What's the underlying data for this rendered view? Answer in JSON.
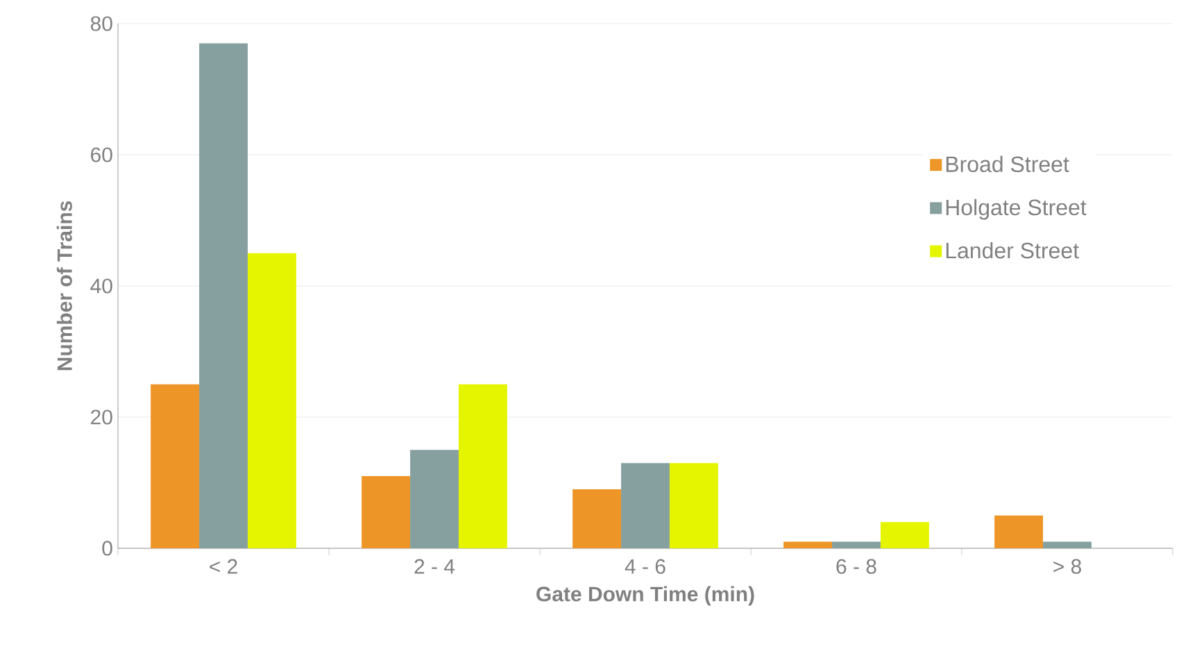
{
  "chart_data": {
    "type": "bar",
    "xlabel": "Gate Down Time (min)",
    "ylabel": "Number of Trains",
    "categories": [
      "< 2",
      "2 - 4",
      "4 - 6",
      "6 - 8",
      "> 8"
    ],
    "series": [
      {
        "name": "Broad Street",
        "color": "#ee9527",
        "values": [
          25,
          11,
          9,
          1,
          5
        ]
      },
      {
        "name": "Holgate Street",
        "color": "#86a0a0",
        "values": [
          77,
          15,
          13,
          1,
          1
        ]
      },
      {
        "name": "Lander Street",
        "color": "#e5f500",
        "values": [
          45,
          25,
          13,
          4,
          0
        ]
      }
    ],
    "ylim": [
      0,
      80
    ],
    "yticks": [
      0,
      20,
      40,
      60,
      80
    ],
    "grid": "y",
    "legend": "right"
  }
}
